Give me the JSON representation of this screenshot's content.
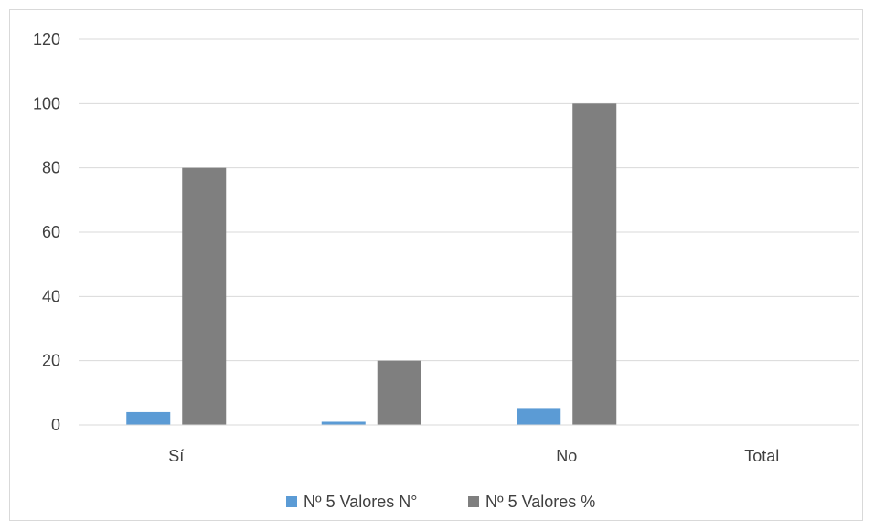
{
  "chart_data": {
    "type": "bar",
    "categories": [
      "Sí",
      "",
      "No",
      "Total"
    ],
    "series": [
      {
        "name": "Nº 5 Valores N°",
        "values": [
          4,
          1,
          5,
          null
        ],
        "color": "#5b9bd5"
      },
      {
        "name": "Nº 5 Valores %",
        "values": [
          80,
          20,
          100,
          null
        ],
        "color": "#7f7f7f"
      }
    ],
    "ylim": [
      0,
      120
    ],
    "yticks": [
      0,
      20,
      40,
      60,
      80,
      100,
      120
    ],
    "grid": true,
    "legend_position": "bottom"
  }
}
